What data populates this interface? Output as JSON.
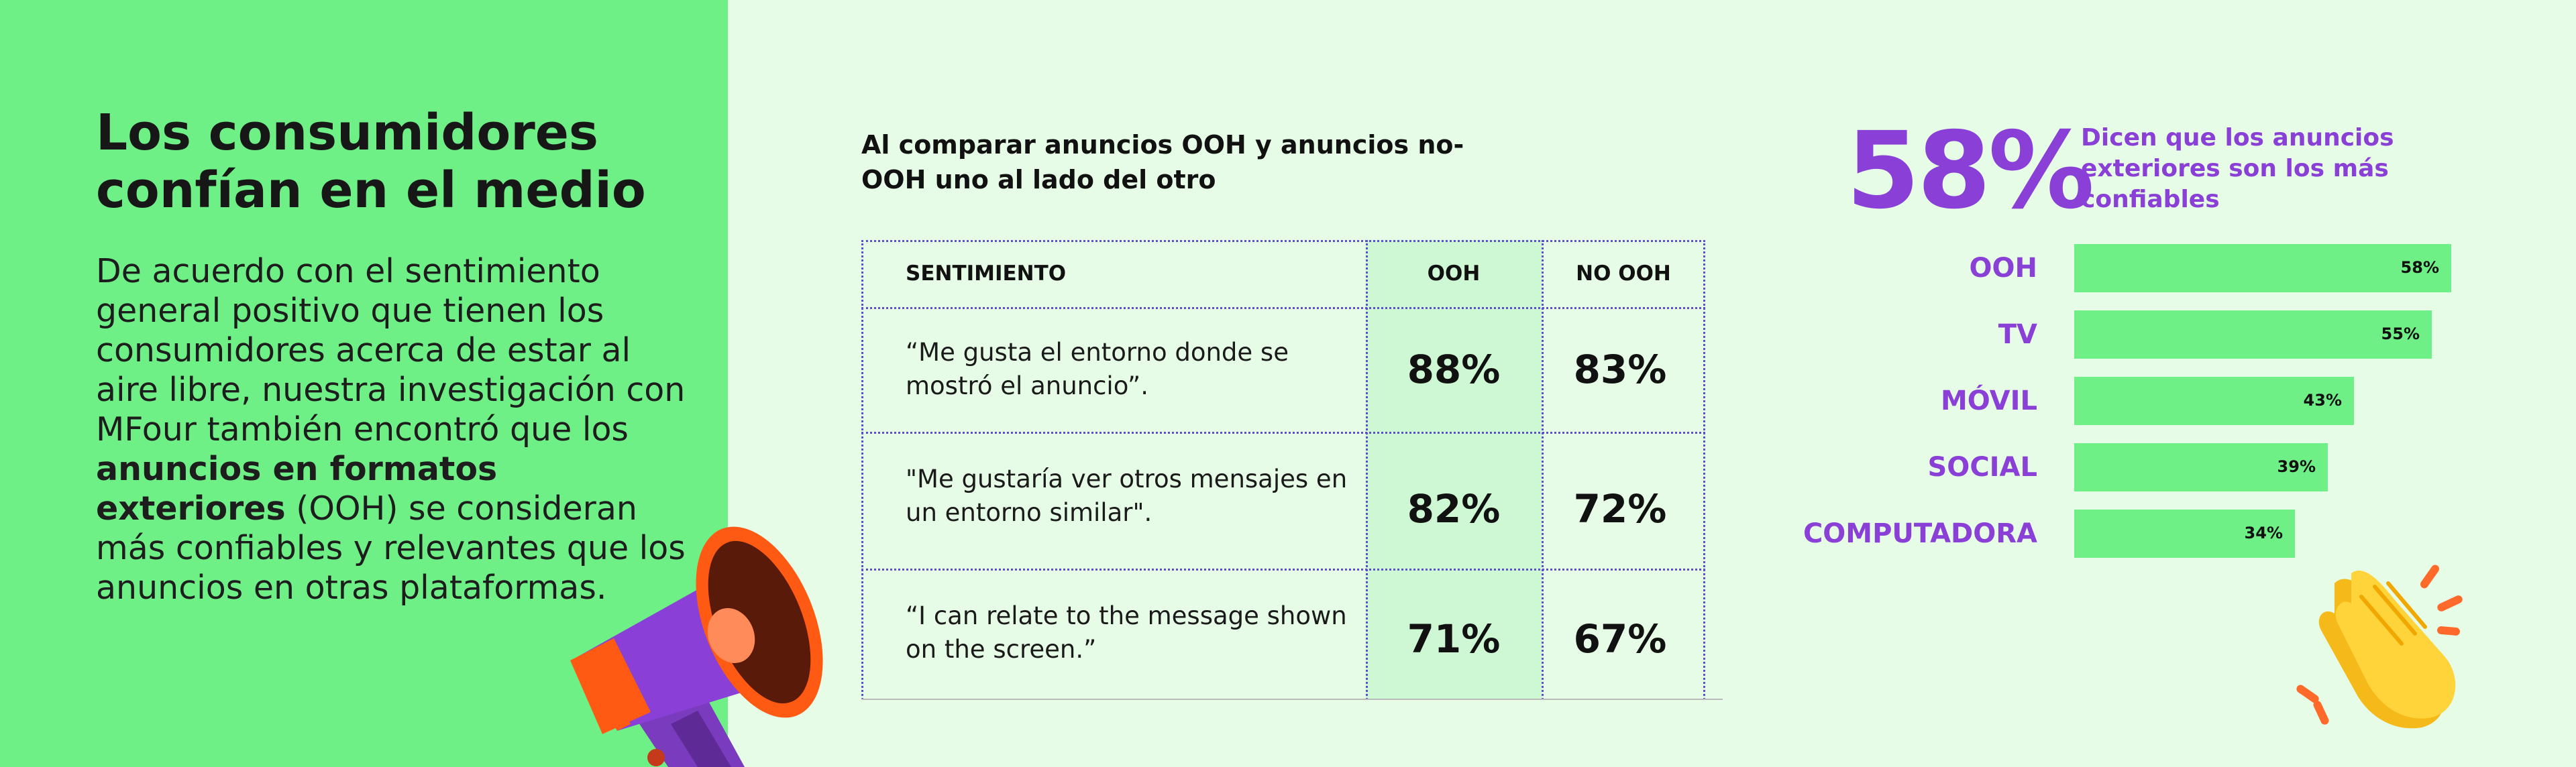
{
  "left": {
    "headline": "Los consumidores confían en el medio",
    "body_part1": "De acuerdo con el sentimiento general positivo que tienen los consumidores acerca de estar al aire libre, nuestra investigación con MFour también encontró que los ",
    "body_bold": "anuncios en formatos exteriores",
    "body_part2": " (OOH) se consideran más confiables y relevantes que los anuncios en otras plataformas."
  },
  "table": {
    "title": "Al comparar anuncios OOH y anuncios no-OOH uno al lado del otro",
    "headers": {
      "sentiment": "SENTIMIENTO",
      "ooh": "OOH",
      "no_ooh": "NO OOH"
    },
    "rows": [
      {
        "text": "“Me gusta el entorno donde se mostró el anuncio”.",
        "ooh": "88%",
        "no_ooh": "83%"
      },
      {
        "text": "\"Me gustaría ver otros mensajes en un entorno similar\".",
        "ooh": "82%",
        "no_ooh": "72%"
      },
      {
        "text": "“I can relate to the message shown on the screen.”",
        "ooh": "71%",
        "no_ooh": "67%"
      }
    ]
  },
  "stat": {
    "value": "58%",
    "caption": "Dicen que los anuncios exteriores son los más confiables"
  },
  "chart_data": {
    "type": "bar",
    "orientation": "horizontal",
    "categories": [
      "OOH",
      "TV",
      "MÓVIL",
      "SOCIAL",
      "COMPUTADORA"
    ],
    "values": [
      58,
      55,
      43,
      39,
      34
    ],
    "value_labels": [
      "58%",
      "55%",
      "43%",
      "39%",
      "34%"
    ],
    "unit": "%",
    "xlim": [
      0,
      58
    ]
  },
  "colors": {
    "accent_purple": "#8a3fd6",
    "bright_green": "#6ef086",
    "light_green_bg": "#e6fce6",
    "table_border": "#5b4fd0"
  },
  "icons": {
    "megaphone": "megaphone-icon",
    "clap": "clapping-hands-icon"
  }
}
